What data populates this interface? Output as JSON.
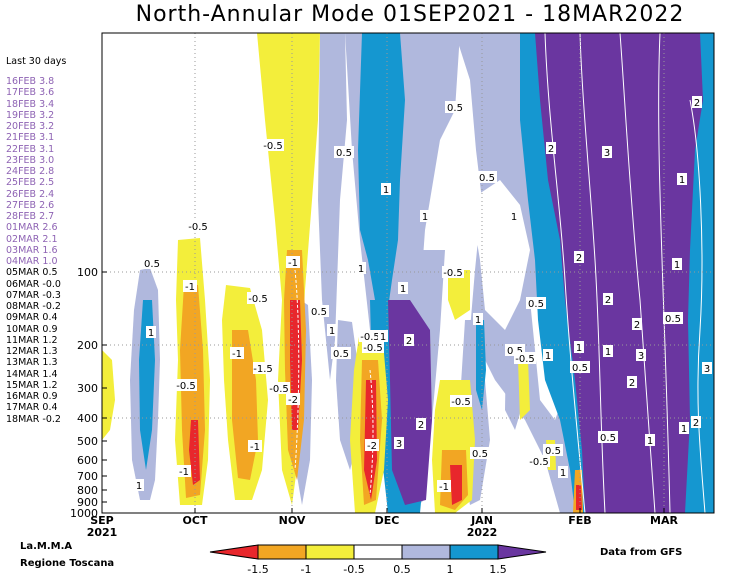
{
  "chart_data": {
    "type": "heatmap",
    "title": "North-Annular Mode 01SEP2021 - 18MAR2022",
    "y_axis": {
      "label": "",
      "scale": "log",
      "direction": "inverted",
      "range": [
        1000,
        10
      ],
      "ticks": [
        "100",
        "200",
        "300",
        "400",
        "500",
        "600",
        "700",
        "800",
        "900",
        "1000"
      ]
    },
    "x_axis": {
      "ticks": [
        "SEP",
        "OCT",
        "NOV",
        "DEC",
        "JAN",
        "FEB",
        "MAR"
      ],
      "year_labels": [
        "2021",
        "2022"
      ]
    },
    "legend": {
      "placement": "bottom-center",
      "ticks": [
        "-1.5",
        "-1",
        "-0.5",
        "0.5",
        "1",
        "1.5"
      ],
      "colors": [
        "#e8272c",
        "#f2a623",
        "#f3ee3b",
        "#ffffff",
        "#b0b8dd",
        "#1597d0",
        "#6a36a0"
      ]
    },
    "last30": {
      "heading": "Last 30 days",
      "entries": [
        {
          "date": "16FEB",
          "value": "3.8"
        },
        {
          "date": "17FEB",
          "value": "3.6"
        },
        {
          "date": "18FEB",
          "value": "3.4"
        },
        {
          "date": "19FEB",
          "value": "3.2"
        },
        {
          "date": "20FEB",
          "value": "3.2"
        },
        {
          "date": "21FEB",
          "value": "3.1"
        },
        {
          "date": "22FEB",
          "value": "3.1"
        },
        {
          "date": "23FEB",
          "value": "3.0"
        },
        {
          "date": "24FEB",
          "value": "2.8"
        },
        {
          "date": "25FEB",
          "value": "2.5"
        },
        {
          "date": "26FEB",
          "value": "2.4"
        },
        {
          "date": "27FEB",
          "value": "2.6"
        },
        {
          "date": "28FEB",
          "value": "2.7"
        },
        {
          "date": "01MAR",
          "value": "2.6"
        },
        {
          "date": "02MAR",
          "value": "2.1"
        },
        {
          "date": "03MAR",
          "value": "1.6"
        },
        {
          "date": "04MAR",
          "value": "1.0"
        },
        {
          "date": "05MAR",
          "value": "0.5"
        },
        {
          "date": "06MAR",
          "value": "-0.0"
        },
        {
          "date": "07MAR",
          "value": "-0.3"
        },
        {
          "date": "08MAR",
          "value": "-0.2"
        },
        {
          "date": "09MAR",
          "value": "0.4"
        },
        {
          "date": "10MAR",
          "value": "0.9"
        },
        {
          "date": "11MAR",
          "value": "1.2"
        },
        {
          "date": "12MAR",
          "value": "1.3"
        },
        {
          "date": "13MAR",
          "value": "1.3"
        },
        {
          "date": "14MAR",
          "value": "1.4"
        },
        {
          "date": "15MAR",
          "value": "1.2"
        },
        {
          "date": "16MAR",
          "value": "0.9"
        },
        {
          "date": "17MAR",
          "value": "0.4"
        },
        {
          "date": "18MAR",
          "value": "-0.2"
        }
      ]
    },
    "contour_labels": [
      "-0.5",
      "-1",
      "-1.5",
      "-2",
      "0.5",
      "1",
      "1.5",
      "2",
      "3"
    ],
    "credits": {
      "org": "La.M.M.A",
      "region": "Regione Toscana",
      "source": "Data from GFS"
    }
  }
}
